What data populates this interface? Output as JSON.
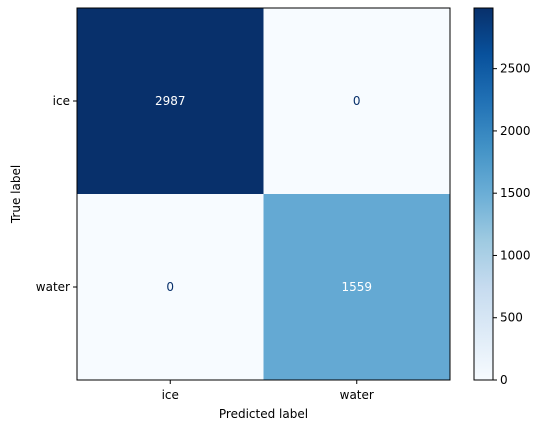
{
  "chart_data": {
    "type": "heatmap",
    "categories_x": [
      "ice",
      "water"
    ],
    "categories_y": [
      "ice",
      "water"
    ],
    "values": [
      [
        2987,
        0
      ],
      [
        0,
        1559
      ]
    ],
    "xlabel": "Predicted label",
    "ylabel": "True label",
    "colormap": "Blues",
    "color_range": [
      0,
      2987
    ],
    "colorbar_ticks": [
      0,
      500,
      1000,
      1500,
      2000,
      2500
    ]
  }
}
